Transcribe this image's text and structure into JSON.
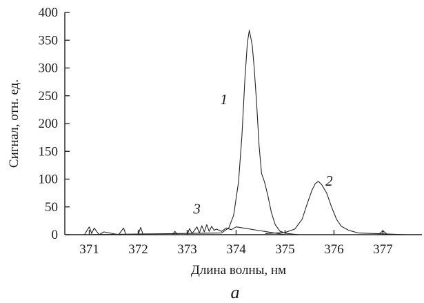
{
  "chart_data": {
    "type": "line",
    "xlabel": "Длина волны, нм",
    "ylabel": "Сигнал, отн. ед.",
    "panel_label": "а",
    "xlim": [
      370.5,
      377.6
    ],
    "ylim": [
      0,
      400
    ],
    "xticks": [
      371,
      372,
      373,
      374,
      375,
      376,
      377
    ],
    "yticks": [
      0,
      50,
      100,
      150,
      200,
      250,
      300,
      350,
      400
    ],
    "grid": false,
    "series": [
      {
        "name": "1",
        "x": [
          370.9,
          373.7,
          373.85,
          373.95,
          374.05,
          374.12,
          374.18,
          374.23,
          374.27,
          374.3,
          374.33,
          374.37,
          374.42,
          374.47,
          374.52,
          374.58,
          374.65,
          374.72,
          374.8,
          374.9,
          375.05,
          375.3
        ],
        "y": [
          0,
          3,
          12,
          35,
          95,
          180,
          280,
          345,
          368,
          355,
          340,
          300,
          235,
          160,
          110,
          95,
          70,
          40,
          18,
          6,
          2,
          0
        ]
      },
      {
        "name": "2",
        "x": [
          374.6,
          375.0,
          375.2,
          375.35,
          375.45,
          375.55,
          375.62,
          375.68,
          375.75,
          375.85,
          375.95,
          376.05,
          376.15,
          376.3,
          376.5,
          377.5
        ],
        "y": [
          2,
          4,
          10,
          28,
          55,
          80,
          92,
          96,
          90,
          75,
          50,
          28,
          15,
          8,
          3,
          0
        ]
      },
      {
        "name": "3",
        "x": [
          370.9,
          371.0,
          371.05,
          371.1,
          371.2,
          371.3,
          371.6,
          371.7,
          371.75,
          371.8,
          372.0,
          372.05,
          372.1,
          372.2,
          372.5,
          372.7,
          372.75,
          372.8,
          373.0,
          373.05,
          373.1,
          373.2,
          373.25,
          373.3,
          373.35,
          373.4,
          373.45,
          373.5,
          373.55,
          373.6,
          373.7,
          373.8,
          373.9,
          374.0,
          375.0,
          376.0,
          376.9,
          377.0,
          377.1,
          377.5
        ],
        "y": [
          0,
          14,
          2,
          12,
          0,
          5,
          0,
          12,
          0,
          0,
          0,
          13,
          0,
          0,
          0,
          0,
          6,
          0,
          0,
          11,
          2,
          14,
          3,
          16,
          5,
          18,
          6,
          15,
          8,
          10,
          6,
          12,
          9,
          14,
          0,
          0,
          0,
          7,
          0,
          0
        ]
      }
    ],
    "annotations": [
      {
        "text": "1",
        "x": 373.75,
        "y": 235
      },
      {
        "text": "2",
        "x": 375.9,
        "y": 88
      },
      {
        "text": "3",
        "x": 373.2,
        "y": 38
      }
    ]
  }
}
